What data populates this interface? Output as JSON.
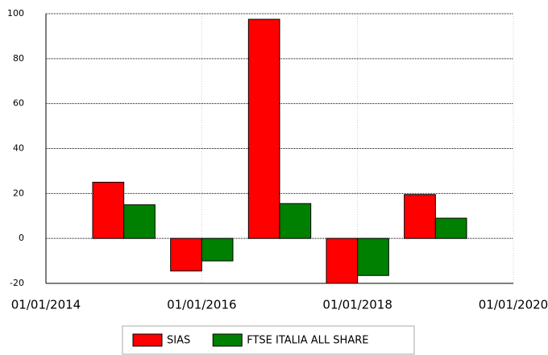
{
  "chart_data": {
    "type": "bar",
    "x": [
      2015,
      2016,
      2017,
      2018,
      2019
    ],
    "series": [
      {
        "name": "SIAS",
        "color": "#ff0000",
        "values": [
          25,
          -14.5,
          97.5,
          -20,
          19.5
        ]
      },
      {
        "name": "FTSE ITALIA ALL SHARE",
        "color": "#008000",
        "values": [
          15,
          -10,
          15.5,
          -16.5,
          9
        ]
      }
    ],
    "xlim": [
      2014,
      2020
    ],
    "xticks": [
      {
        "value": 2014,
        "label": "01/01/2014"
      },
      {
        "value": 2016,
        "label": "01/01/2016"
      },
      {
        "value": 2018,
        "label": "01/01/2018"
      },
      {
        "value": 2020,
        "label": "01/01/2020"
      }
    ],
    "ylim": [
      -20,
      100
    ],
    "yticks": [
      -20,
      0,
      20,
      40,
      60,
      80,
      100
    ],
    "grid": true,
    "legend": "bottom"
  }
}
